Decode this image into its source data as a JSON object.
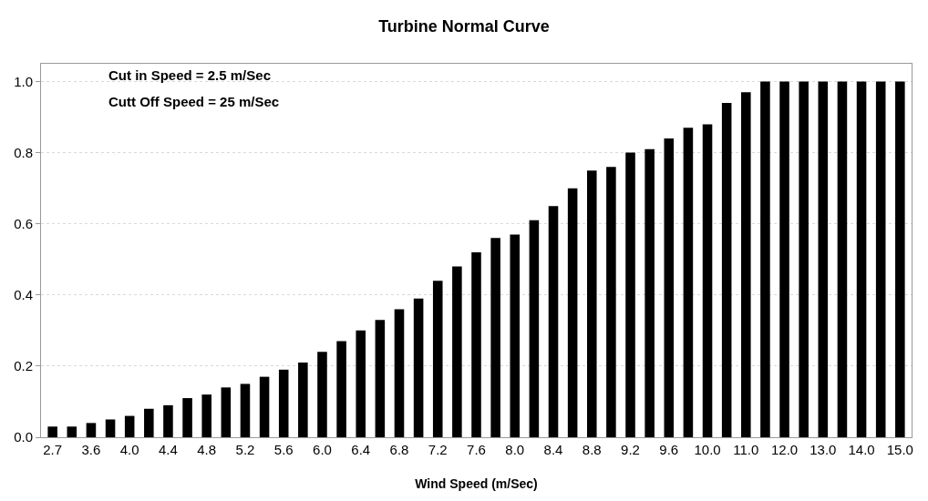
{
  "chart_data": {
    "type": "bar",
    "title": "Turbine Normal Curve",
    "xlabel": "Wind Speed (m/Sec)",
    "categories": [
      "2.7",
      null,
      "3.6",
      null,
      "4.0",
      null,
      "4.4",
      null,
      "4.8",
      null,
      "5.2",
      null,
      "5.6",
      null,
      "6.0",
      null,
      "6.4",
      null,
      "6.8",
      null,
      "7.2",
      null,
      "7.6",
      null,
      "8.0",
      null,
      "8.4",
      null,
      "8.8",
      null,
      "9.2",
      null,
      "9.6",
      null,
      "10.0",
      null,
      "11.0",
      null,
      "12.0",
      null,
      "13.0",
      null,
      "14.0",
      null,
      "15.0"
    ],
    "values": [
      0.03,
      0.03,
      0.04,
      0.05,
      0.06,
      0.08,
      0.09,
      0.11,
      0.12,
      0.14,
      0.15,
      0.17,
      0.19,
      0.21,
      0.24,
      0.27,
      0.3,
      0.33,
      0.36,
      0.39,
      0.44,
      0.48,
      0.52,
      0.56,
      0.57,
      0.61,
      0.65,
      0.7,
      0.75,
      0.76,
      0.8,
      0.81,
      0.84,
      0.87,
      0.88,
      0.94,
      0.97,
      1.0,
      1.0,
      1.0,
      1.0,
      1.0,
      1.0,
      1.0,
      1.0
    ],
    "color": "#000000",
    "ylim": [
      0,
      1.05
    ],
    "yticks": [
      {
        "value": 0,
        "label": "0.0"
      },
      {
        "value": 0.2,
        "label": "0.2"
      },
      {
        "value": 0.4,
        "label": "0.4"
      },
      {
        "value": 0.6,
        "label": "0.6"
      },
      {
        "value": 0.8,
        "label": "0.8"
      },
      {
        "value": 1.0,
        "label": "1.0"
      }
    ],
    "grid": "y",
    "annotations": [
      "Cut in Speed = 2.5 m/Sec",
      "Cutt Off Speed = 25 m/Sec"
    ]
  }
}
